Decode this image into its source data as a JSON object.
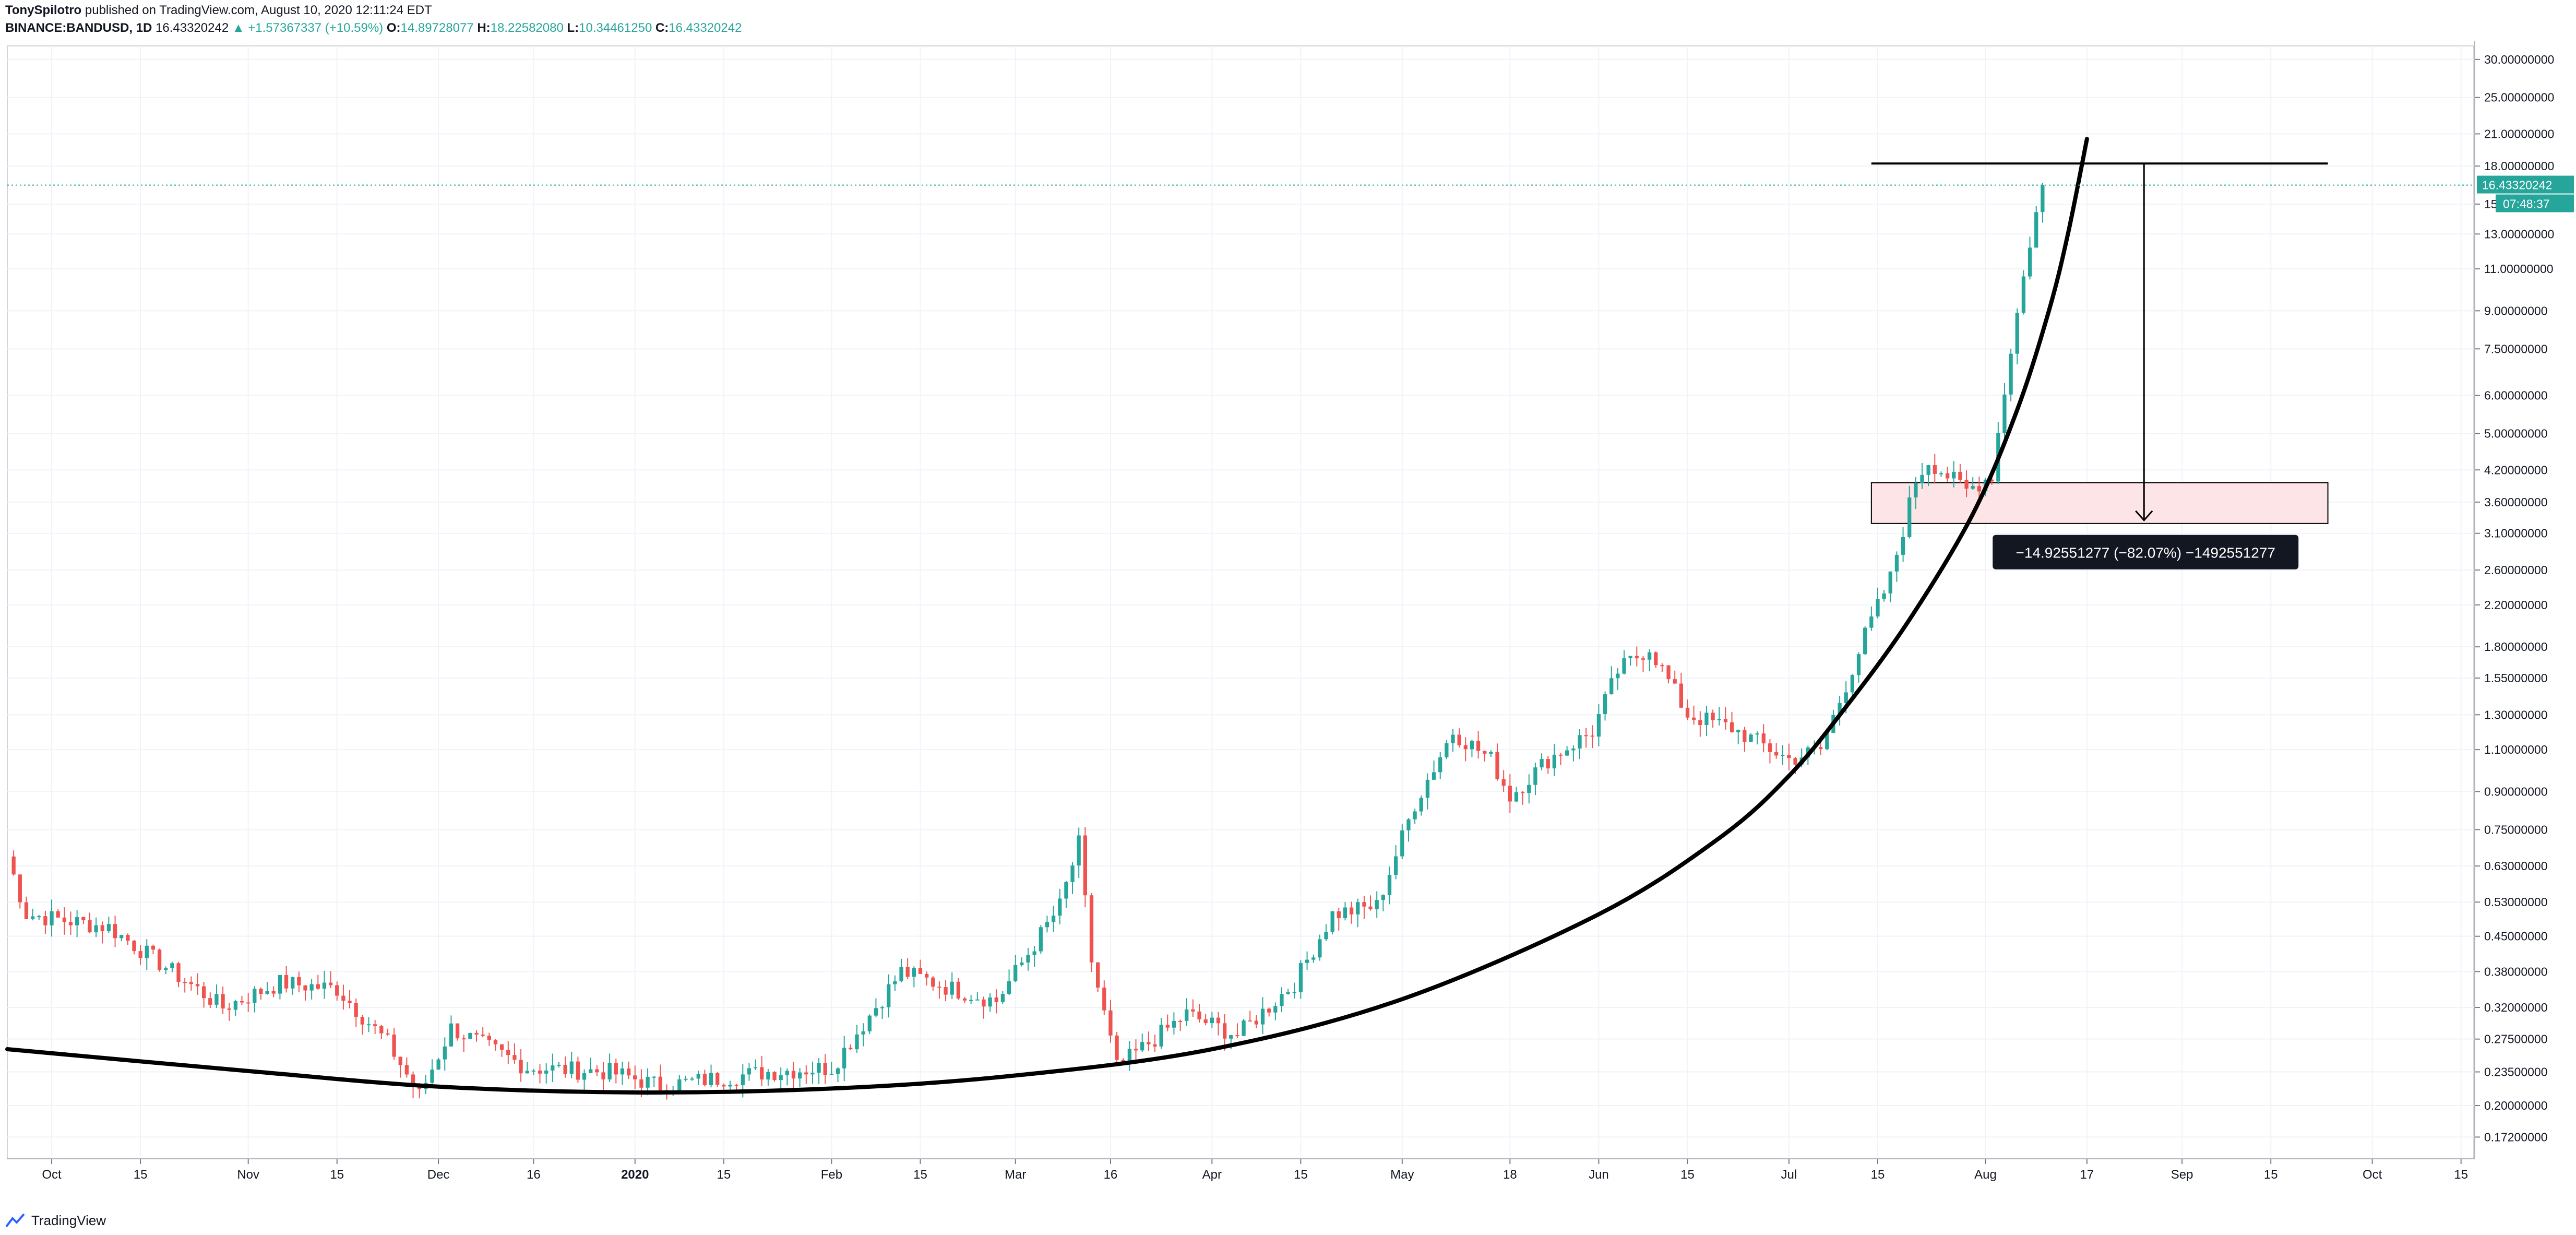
{
  "header": {
    "author": "TonySpilotro",
    "published_text": "published on TradingView.com, August 10, 2020 12:11:24 EDT",
    "symbol": "BINANCE:BANDUSD, 1D",
    "last": "16.43320242",
    "change": "▲ +1.57367337 (+10.59%)",
    "o_label": "O:",
    "o_value": "14.89728077",
    "h_label": "H:",
    "h_value": "18.22582080",
    "l_label": "L:",
    "l_value": "10.34461250",
    "c_label": "C:",
    "c_value": "16.43320242"
  },
  "footer": {
    "brand": "TradingView",
    "icon": "tradingview-logo-icon"
  },
  "colors": {
    "up": "#26a69a",
    "down": "#ef5350",
    "grid": "#f0f3fa",
    "curve": "#000000",
    "zone_fill": "#fde4e6"
  },
  "chart_data": {
    "type": "candlestick",
    "scale": "log",
    "x_range": [
      "2019-09-24",
      "2020-10-17"
    ],
    "ylim": [
      0.155,
      32.0
    ],
    "grid": true,
    "y_ticks": [
      "30.00000000",
      "25.00000000",
      "21.00000000",
      "18.00000000",
      "15.00000000",
      "13.00000000",
      "11.00000000",
      "9.00000000",
      "7.50000000",
      "6.00000000",
      "5.00000000",
      "4.20000000",
      "3.60000000",
      "3.10000000",
      "2.60000000",
      "2.20000000",
      "1.80000000",
      "1.55000000",
      "1.30000000",
      "1.10000000",
      "0.90000000",
      "0.75000000",
      "0.63000000",
      "0.53000000",
      "0.45000000",
      "0.38000000",
      "0.32000000",
      "0.27500000",
      "0.23500000",
      "0.20000000",
      "0.17200000"
    ],
    "x_ticks": [
      {
        "label": "Oct",
        "date": "2019-10-01"
      },
      {
        "label": "15",
        "date": "2019-10-15"
      },
      {
        "label": "Nov",
        "date": "2019-11-01"
      },
      {
        "label": "15",
        "date": "2019-11-15"
      },
      {
        "label": "Dec",
        "date": "2019-12-01"
      },
      {
        "label": "16",
        "date": "2019-12-16"
      },
      {
        "label": "2020",
        "date": "2020-01-01"
      },
      {
        "label": "15",
        "date": "2020-01-15"
      },
      {
        "label": "Feb",
        "date": "2020-02-01"
      },
      {
        "label": "15",
        "date": "2020-02-15"
      },
      {
        "label": "Mar",
        "date": "2020-03-01"
      },
      {
        "label": "16",
        "date": "2020-03-16"
      },
      {
        "label": "Apr",
        "date": "2020-04-01"
      },
      {
        "label": "15",
        "date": "2020-04-15"
      },
      {
        "label": "May",
        "date": "2020-05-01"
      },
      {
        "label": "18",
        "date": "2020-05-18"
      },
      {
        "label": "Jun",
        "date": "2020-06-01"
      },
      {
        "label": "15",
        "date": "2020-06-15"
      },
      {
        "label": "Jul",
        "date": "2020-07-01"
      },
      {
        "label": "15",
        "date": "2020-07-15"
      },
      {
        "label": "Aug",
        "date": "2020-08-01"
      },
      {
        "label": "17",
        "date": "2020-08-17"
      },
      {
        "label": "Sep",
        "date": "2020-09-01"
      },
      {
        "label": "15",
        "date": "2020-09-15"
      },
      {
        "label": "Oct",
        "date": "2020-10-01"
      },
      {
        "label": "15",
        "date": "2020-10-15"
      }
    ],
    "price_line": 16.4332,
    "price_label": "16.43320242",
    "countdown_label": "07:48:37",
    "key_points": [
      {
        "date": "2019-09-24",
        "price": 0.66
      },
      {
        "date": "2019-09-27",
        "price": 0.5
      },
      {
        "date": "2019-10-10",
        "price": 0.47
      },
      {
        "date": "2019-10-20",
        "price": 0.38
      },
      {
        "date": "2019-10-28",
        "price": 0.32
      },
      {
        "date": "2019-11-06",
        "price": 0.36
      },
      {
        "date": "2019-11-15",
        "price": 0.35
      },
      {
        "date": "2019-11-23",
        "price": 0.27
      },
      {
        "date": "2019-11-28",
        "price": 0.21
      },
      {
        "date": "2019-12-03",
        "price": 0.29
      },
      {
        "date": "2019-12-15",
        "price": 0.24
      },
      {
        "date": "2019-12-28",
        "price": 0.235
      },
      {
        "date": "2020-01-05",
        "price": 0.22
      },
      {
        "date": "2020-01-22",
        "price": 0.235
      },
      {
        "date": "2020-02-01",
        "price": 0.24
      },
      {
        "date": "2020-02-12",
        "price": 0.38
      },
      {
        "date": "2020-02-20",
        "price": 0.35
      },
      {
        "date": "2020-02-27",
        "price": 0.33
      },
      {
        "date": "2020-03-08",
        "price": 0.52
      },
      {
        "date": "2020-03-11",
        "price": 0.7
      },
      {
        "date": "2020-03-13",
        "price": 0.4
      },
      {
        "date": "2020-03-17",
        "price": 0.24
      },
      {
        "date": "2020-03-28",
        "price": 0.31
      },
      {
        "date": "2020-04-05",
        "price": 0.28
      },
      {
        "date": "2020-04-14",
        "price": 0.36
      },
      {
        "date": "2020-04-20",
        "price": 0.5
      },
      {
        "date": "2020-04-27",
        "price": 0.52
      },
      {
        "date": "2020-05-03",
        "price": 0.85
      },
      {
        "date": "2020-05-09",
        "price": 1.2
      },
      {
        "date": "2020-05-15",
        "price": 1.05
      },
      {
        "date": "2020-05-18",
        "price": 0.88
      },
      {
        "date": "2020-05-24",
        "price": 1.05
      },
      {
        "date": "2020-05-31",
        "price": 1.2
      },
      {
        "date": "2020-06-04",
        "price": 1.6
      },
      {
        "date": "2020-06-09",
        "price": 1.8
      },
      {
        "date": "2020-06-15",
        "price": 1.3
      },
      {
        "date": "2020-06-22",
        "price": 1.22
      },
      {
        "date": "2020-07-01",
        "price": 1.05
      },
      {
        "date": "2020-07-06",
        "price": 1.1
      },
      {
        "date": "2020-07-13",
        "price": 1.9
      },
      {
        "date": "2020-07-17",
        "price": 2.5
      },
      {
        "date": "2020-07-21",
        "price": 4.0
      },
      {
        "date": "2020-07-23",
        "price": 4.4
      },
      {
        "date": "2020-07-29",
        "price": 3.8
      },
      {
        "date": "2020-08-02",
        "price": 4.1
      },
      {
        "date": "2020-08-05",
        "price": 7.5
      },
      {
        "date": "2020-08-08",
        "price": 12.5
      },
      {
        "date": "2020-08-10",
        "price": 16.43
      }
    ],
    "support_zone": {
      "date_from": "2020-07-14",
      "date_to": "2020-09-24",
      "price_low": 3.25,
      "price_high": 3.95
    },
    "top_line": {
      "date_from": "2020-07-14",
      "date_to": "2020-09-24",
      "price": 18.22
    },
    "measure": {
      "date": "2020-08-26",
      "from": 18.22,
      "to": 3.3
    },
    "measure_label": "−14.92551277 (−82.07%) −1492551277",
    "curve": [
      {
        "date": "2019-09-24",
        "price": 0.262
      },
      {
        "date": "2019-11-01",
        "price": 0.236
      },
      {
        "date": "2019-12-01",
        "price": 0.219
      },
      {
        "date": "2020-01-01",
        "price": 0.213
      },
      {
        "date": "2020-02-01",
        "price": 0.217
      },
      {
        "date": "2020-03-01",
        "price": 0.231
      },
      {
        "date": "2020-04-01",
        "price": 0.262
      },
      {
        "date": "2020-05-01",
        "price": 0.333
      },
      {
        "date": "2020-06-01",
        "price": 0.5
      },
      {
        "date": "2020-06-20",
        "price": 0.72
      },
      {
        "date": "2020-07-01",
        "price": 0.97
      },
      {
        "date": "2020-07-10",
        "price": 1.35
      },
      {
        "date": "2020-07-20",
        "price": 2.05
      },
      {
        "date": "2020-07-30",
        "price": 3.4
      },
      {
        "date": "2020-08-06",
        "price": 5.6
      },
      {
        "date": "2020-08-11",
        "price": 9.0
      },
      {
        "date": "2020-08-14",
        "price": 13.0
      },
      {
        "date": "2020-08-17",
        "price": 20.5
      }
    ]
  }
}
